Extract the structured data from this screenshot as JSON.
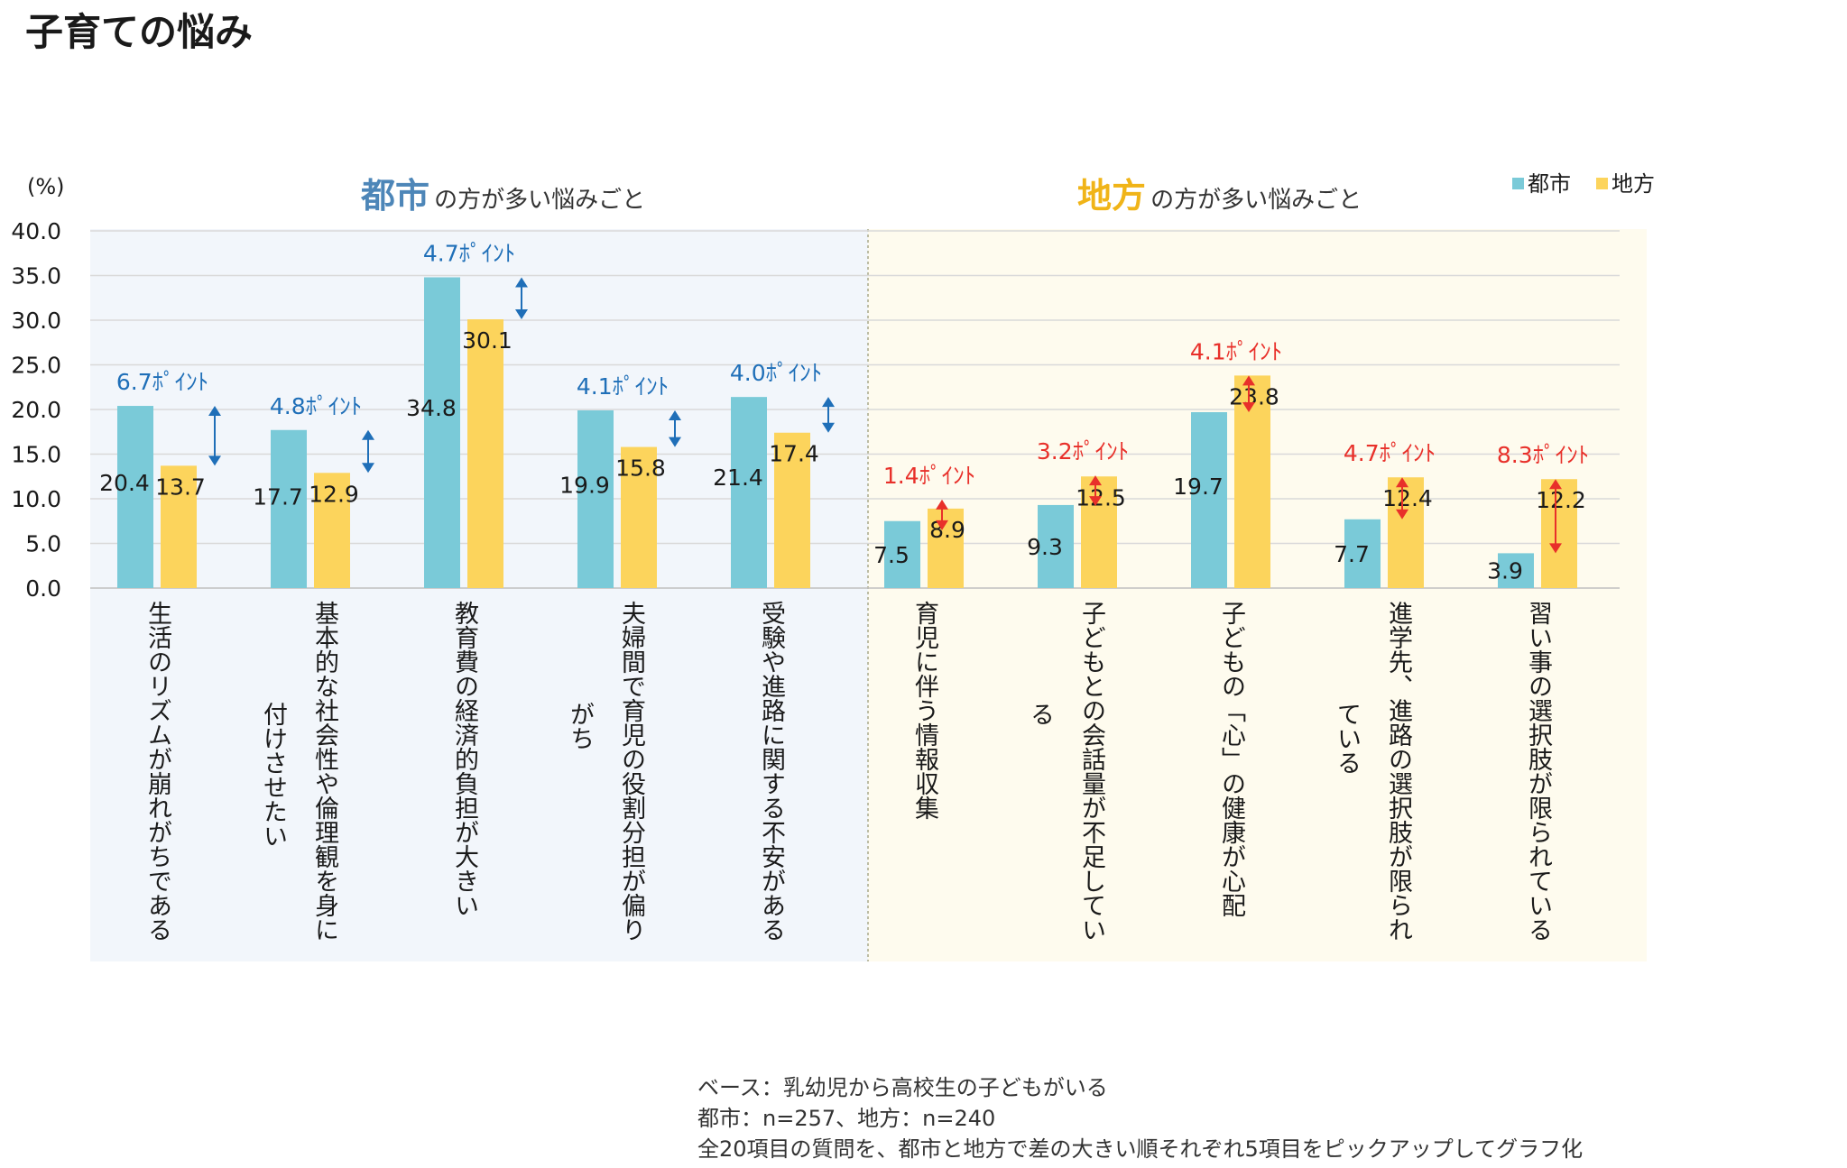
{
  "page_title": "子育ての悩み",
  "colors": {
    "city": "#7ACAD8",
    "rural": "#FCD45C",
    "city_accent": "#4D86B8",
    "rural_accent": "#F0B418",
    "city_panel": "#F2F6FB",
    "rural_panel": "#FEFBEE",
    "diff_blue": "#1F6FB8",
    "diff_red": "#E8302A"
  },
  "chart_data": {
    "type": "bar",
    "ylabel": "(%)",
    "ylim": [
      0,
      40
    ],
    "yticks": [
      "0.0",
      "5.0",
      "10.0",
      "15.0",
      "20.0",
      "25.0",
      "30.0",
      "35.0",
      "40.0"
    ],
    "legend": [
      "都市",
      "地方"
    ],
    "section_city": {
      "emph": "都市",
      "rest": "の方が多い悩みごと"
    },
    "section_rural": {
      "emph": "地方",
      "rest": "の方が多い悩みごと"
    },
    "categories": [
      {
        "label": [
          "生活のリズムが崩れがちである"
        ],
        "city": 20.4,
        "rural": 13.7,
        "diff": "6.7ﾎﾟｲﾝﾄ",
        "group": "city"
      },
      {
        "label": [
          "基本的な社会性や倫理観を身に",
          "付けさせたい"
        ],
        "city": 17.7,
        "rural": 12.9,
        "diff": "4.8ﾎﾟｲﾝﾄ",
        "group": "city"
      },
      {
        "label": [
          "教育費の経済的負担が大きい"
        ],
        "city": 34.8,
        "rural": 30.1,
        "diff": "4.7ﾎﾟｲﾝﾄ",
        "group": "city"
      },
      {
        "label": [
          "夫婦間で育児の役割分担が偏り",
          "がち"
        ],
        "city": 19.9,
        "rural": 15.8,
        "diff": "4.1ﾎﾟｲﾝﾄ",
        "group": "city"
      },
      {
        "label": [
          "受験や進路に関する不安がある"
        ],
        "city": 21.4,
        "rural": 17.4,
        "diff": "4.0ﾎﾟｲﾝﾄ",
        "group": "city"
      },
      {
        "label": [
          "育児に伴う情報収集"
        ],
        "city": 7.5,
        "rural": 8.9,
        "diff": "1.4ﾎﾟｲﾝﾄ",
        "group": "rural"
      },
      {
        "label": [
          "子どもとの会話量が不足してい",
          "る"
        ],
        "city": 9.3,
        "rural": 12.5,
        "diff": "3.2ﾎﾟｲﾝﾄ",
        "group": "rural"
      },
      {
        "label": [
          "子どもの「心」の健康が心配"
        ],
        "city": 19.7,
        "rural": 23.8,
        "diff": "4.1ﾎﾟｲﾝﾄ",
        "group": "rural"
      },
      {
        "label": [
          "進学先、進路の選択肢が限られ",
          "ている"
        ],
        "city": 7.7,
        "rural": 12.4,
        "diff": "4.7ﾎﾟｲﾝﾄ",
        "group": "rural"
      },
      {
        "label": [
          "習い事の選択肢が限られている"
        ],
        "city": 3.9,
        "rural": 12.2,
        "diff": "8.3ﾎﾟｲﾝﾄ",
        "group": "rural"
      }
    ]
  },
  "footnotes": [
    "ベース：乳幼児から高校生の子どもがいる",
    "都市：n=257、地方：n=240",
    "全20項目の質問を、都市と地方で差の大きい順それぞれ5項目をピックアップしてグラフ化"
  ]
}
